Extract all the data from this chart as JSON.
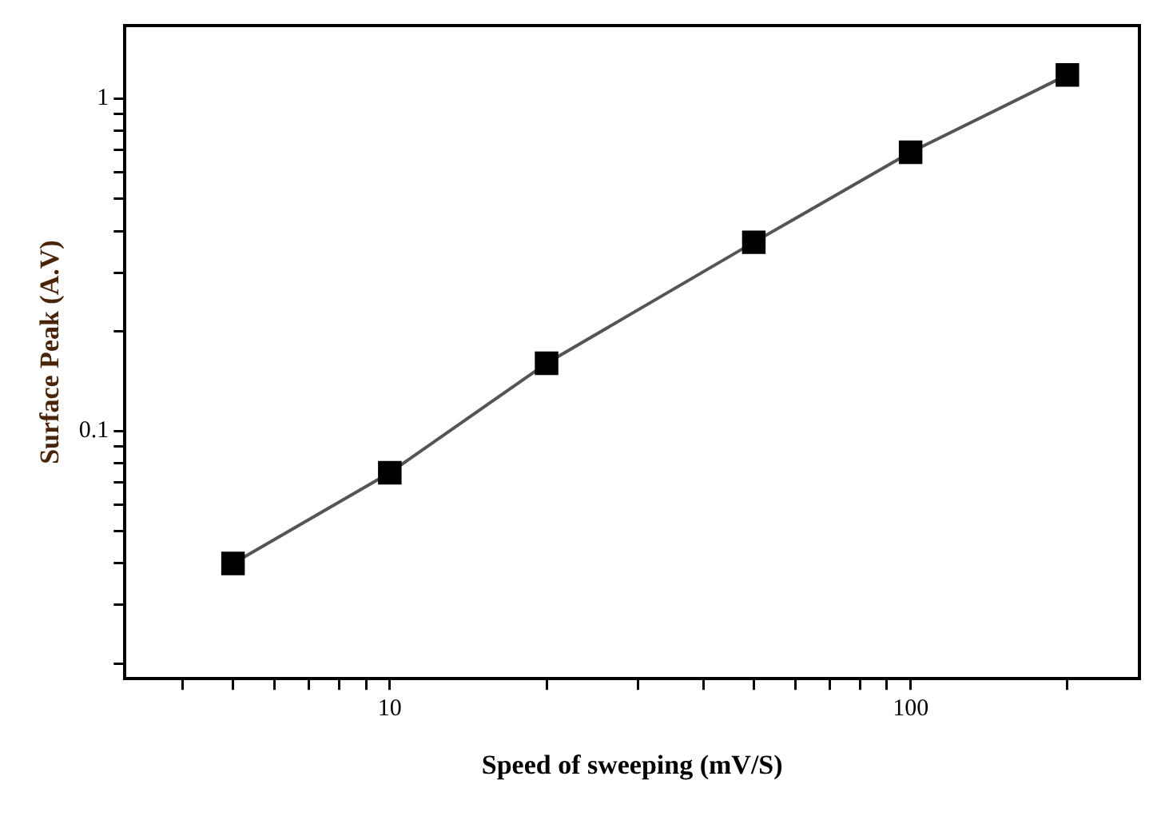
{
  "chart_data": {
    "type": "line",
    "xlabel": "Speed of sweeping (mV/S)",
    "ylabel": "Surface Peak (A.V)",
    "x": [
      5,
      10,
      20,
      50,
      100,
      200
    ],
    "series": [
      {
        "color": "#000000",
        "values": [
          0.04,
          0.075,
          0.16,
          0.37,
          0.69,
          1.18
        ]
      }
    ],
    "log": "xy",
    "xlim": [
      3.1,
      275
    ],
    "ylim": [
      0.018,
      1.66
    ],
    "xticks": [
      {
        "value": 4,
        "label": null
      },
      {
        "value": 5,
        "label": null
      },
      {
        "value": 6,
        "label": null
      },
      {
        "value": 7,
        "label": null
      },
      {
        "value": 8,
        "label": null
      },
      {
        "value": 9,
        "label": null
      },
      10,
      {
        "value": 20,
        "label": null
      },
      {
        "value": 30,
        "label": null
      },
      {
        "value": 40,
        "label": null
      },
      {
        "value": 50,
        "label": null
      },
      {
        "value": 60,
        "label": null
      },
      {
        "value": 70,
        "label": null
      },
      {
        "value": 80,
        "label": null
      },
      {
        "value": 90,
        "label": null
      },
      100,
      {
        "value": 200,
        "label": null
      }
    ],
    "yticks": [
      {
        "value": 0.02,
        "label": null
      },
      {
        "value": 0.03,
        "label": null
      },
      {
        "value": 0.04,
        "label": null
      },
      {
        "value": 0.05,
        "label": null
      },
      {
        "value": 0.06,
        "label": null
      },
      {
        "value": 0.07,
        "label": null
      },
      {
        "value": 0.08,
        "label": null
      },
      {
        "value": 0.09,
        "label": null
      },
      0.1,
      {
        "value": 0.2,
        "label": null
      },
      {
        "value": 0.3,
        "label": null
      },
      {
        "value": 0.4,
        "label": null
      },
      {
        "value": 0.5,
        "label": null
      },
      {
        "value": 0.6,
        "label": null
      },
      {
        "value": 0.7,
        "label": null
      },
      {
        "value": 0.8,
        "label": null
      },
      {
        "value": 0.9,
        "label": null
      },
      1
    ],
    "grid": false,
    "legend": false,
    "marker": "square",
    "line_style": "solid"
  }
}
